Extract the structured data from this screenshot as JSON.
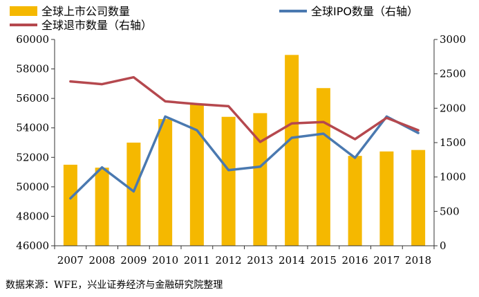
{
  "chart_data": {
    "type": "bar+line",
    "categories": [
      "2007",
      "2008",
      "2009",
      "2010",
      "2011",
      "2012",
      "2013",
      "2014",
      "2015",
      "2016",
      "2017",
      "2018"
    ],
    "series": [
      {
        "name": "全球上市公司数量",
        "type": "bar",
        "axis": "left",
        "color": "#F5B800",
        "values": [
          51500,
          51300,
          53000,
          54600,
          55600,
          54750,
          55000,
          58950,
          56700,
          52100,
          52400,
          52500
        ]
      },
      {
        "name": "全球IPO数量（右轴）",
        "type": "line",
        "axis": "right",
        "color": "#4A79B0",
        "values": [
          690,
          1140,
          790,
          1880,
          1680,
          1100,
          1150,
          1570,
          1630,
          1280,
          1880,
          1640
        ]
      },
      {
        "name": "全球退市数量（右轴）",
        "type": "line",
        "axis": "right",
        "color": "#B5484E",
        "values": [
          2390,
          2350,
          2450,
          2100,
          2060,
          2030,
          1510,
          1780,
          1800,
          1550,
          1860,
          1680
        ]
      }
    ],
    "ylim": [
      46000,
      60000
    ],
    "y_ticks": [
      "46000",
      "48000",
      "50000",
      "52000",
      "54000",
      "56000",
      "58000",
      "60000"
    ],
    "y2lim": [
      0,
      3000
    ],
    "y2_ticks": [
      "0",
      "500",
      "1000",
      "1500",
      "2000",
      "2500",
      "3000"
    ],
    "legend_position": "top"
  },
  "source_note": "数据来源：WFE，兴业证券经济与金融研究院整理"
}
